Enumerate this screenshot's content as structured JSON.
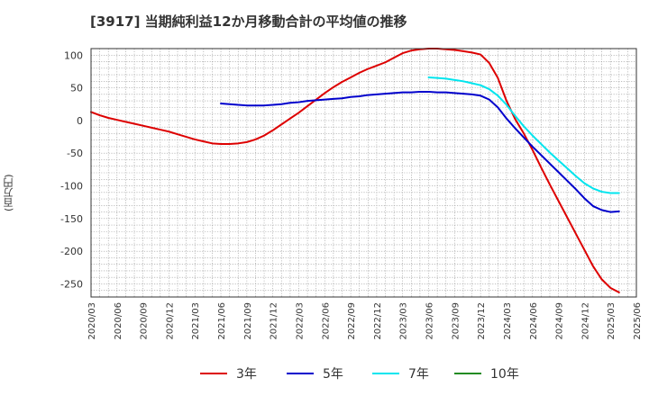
{
  "chart_title": "[3917]  当期純利益12か月移動合計の平均値の推移",
  "chart_data": {
    "type": "line",
    "title": "[3917]  当期純利益12か月移動合計の平均値の推移",
    "ylabel": "(百万円)",
    "xlabel": "",
    "ylim": [
      -270,
      110
    ],
    "yticks": [
      100,
      50,
      0,
      -50,
      -100,
      -150,
      -200,
      -250
    ],
    "xticks": [
      "2020/03",
      "2020/06",
      "2020/09",
      "2020/12",
      "2021/03",
      "2021/06",
      "2021/09",
      "2021/12",
      "2022/03",
      "2022/06",
      "2022/09",
      "2022/12",
      "2023/03",
      "2023/06",
      "2023/09",
      "2023/12",
      "2024/03",
      "2024/06",
      "2024/09",
      "2024/12",
      "2025/03",
      "2025/06"
    ],
    "grid": true,
    "legend_position": "bottom",
    "series": [
      {
        "name": "3年",
        "color": "#dd0000",
        "points": [
          [
            "2020/03",
            13
          ],
          [
            "2020/04",
            8
          ],
          [
            "2020/05",
            4
          ],
          [
            "2020/06",
            1
          ],
          [
            "2020/07",
            -2
          ],
          [
            "2020/08",
            -5
          ],
          [
            "2020/09",
            -8
          ],
          [
            "2020/10",
            -11
          ],
          [
            "2020/11",
            -14
          ],
          [
            "2020/12",
            -17
          ],
          [
            "2021/01",
            -21
          ],
          [
            "2021/02",
            -25
          ],
          [
            "2021/03",
            -29
          ],
          [
            "2021/04",
            -32
          ],
          [
            "2021/05",
            -35
          ],
          [
            "2021/06",
            -36
          ],
          [
            "2021/07",
            -36
          ],
          [
            "2021/08",
            -35
          ],
          [
            "2021/09",
            -33
          ],
          [
            "2021/10",
            -29
          ],
          [
            "2021/11",
            -23
          ],
          [
            "2021/12",
            -15
          ],
          [
            "2022/01",
            -6
          ],
          [
            "2022/02",
            3
          ],
          [
            "2022/03",
            12
          ],
          [
            "2022/04",
            22
          ],
          [
            "2022/05",
            32
          ],
          [
            "2022/06",
            42
          ],
          [
            "2022/07",
            51
          ],
          [
            "2022/08",
            59
          ],
          [
            "2022/09",
            66
          ],
          [
            "2022/10",
            73
          ],
          [
            "2022/11",
            79
          ],
          [
            "2022/12",
            84
          ],
          [
            "2023/01",
            89
          ],
          [
            "2023/02",
            96
          ],
          [
            "2023/03",
            103
          ],
          [
            "2023/04",
            107
          ],
          [
            "2023/05",
            109
          ],
          [
            "2023/06",
            110
          ],
          [
            "2023/07",
            110
          ],
          [
            "2023/08",
            109
          ],
          [
            "2023/09",
            108
          ],
          [
            "2023/10",
            106
          ],
          [
            "2023/11",
            104
          ],
          [
            "2023/12",
            101
          ],
          [
            "2024/01",
            88
          ],
          [
            "2024/02",
            65
          ],
          [
            "2024/03",
            30
          ],
          [
            "2024/04",
            2
          ],
          [
            "2024/05",
            -20
          ],
          [
            "2024/06",
            -45
          ],
          [
            "2024/07",
            -72
          ],
          [
            "2024/08",
            -98
          ],
          [
            "2024/09",
            -123
          ],
          [
            "2024/10",
            -148
          ],
          [
            "2024/11",
            -173
          ],
          [
            "2024/12",
            -198
          ],
          [
            "2025/01",
            -223
          ],
          [
            "2025/02",
            -243
          ],
          [
            "2025/03",
            -256
          ],
          [
            "2025/04",
            -263
          ]
        ]
      },
      {
        "name": "5年",
        "color": "#0000cc",
        "points": [
          [
            "2021/06",
            26
          ],
          [
            "2021/07",
            25
          ],
          [
            "2021/08",
            24
          ],
          [
            "2021/09",
            23
          ],
          [
            "2021/10",
            23
          ],
          [
            "2021/11",
            23
          ],
          [
            "2021/12",
            24
          ],
          [
            "2022/01",
            25
          ],
          [
            "2022/02",
            27
          ],
          [
            "2022/03",
            28
          ],
          [
            "2022/04",
            30
          ],
          [
            "2022/05",
            31
          ],
          [
            "2022/06",
            32
          ],
          [
            "2022/07",
            33
          ],
          [
            "2022/08",
            34
          ],
          [
            "2022/09",
            36
          ],
          [
            "2022/10",
            37
          ],
          [
            "2022/11",
            39
          ],
          [
            "2022/12",
            40
          ],
          [
            "2023/01",
            41
          ],
          [
            "2023/02",
            42
          ],
          [
            "2023/03",
            43
          ],
          [
            "2023/04",
            43
          ],
          [
            "2023/05",
            44
          ],
          [
            "2023/06",
            44
          ],
          [
            "2023/07",
            43
          ],
          [
            "2023/08",
            43
          ],
          [
            "2023/09",
            42
          ],
          [
            "2023/10",
            41
          ],
          [
            "2023/11",
            40
          ],
          [
            "2023/12",
            38
          ],
          [
            "2024/01",
            32
          ],
          [
            "2024/02",
            20
          ],
          [
            "2024/03",
            3
          ],
          [
            "2024/04",
            -12
          ],
          [
            "2024/05",
            -26
          ],
          [
            "2024/06",
            -40
          ],
          [
            "2024/07",
            -53
          ],
          [
            "2024/08",
            -66
          ],
          [
            "2024/09",
            -79
          ],
          [
            "2024/10",
            -92
          ],
          [
            "2024/11",
            -105
          ],
          [
            "2024/12",
            -119
          ],
          [
            "2025/01",
            -131
          ],
          [
            "2025/02",
            -137
          ],
          [
            "2025/03",
            -140
          ],
          [
            "2025/04",
            -139
          ]
        ]
      },
      {
        "name": "7年",
        "color": "#00e5ee",
        "points": [
          [
            "2023/06",
            66
          ],
          [
            "2023/07",
            65
          ],
          [
            "2023/08",
            64
          ],
          [
            "2023/09",
            62
          ],
          [
            "2023/10",
            60
          ],
          [
            "2023/11",
            57
          ],
          [
            "2023/12",
            54
          ],
          [
            "2024/01",
            48
          ],
          [
            "2024/02",
            38
          ],
          [
            "2024/03",
            24
          ],
          [
            "2024/04",
            7
          ],
          [
            "2024/05",
            -9
          ],
          [
            "2024/06",
            -23
          ],
          [
            "2024/07",
            -36
          ],
          [
            "2024/08",
            -49
          ],
          [
            "2024/09",
            -61
          ],
          [
            "2024/10",
            -73
          ],
          [
            "2024/11",
            -85
          ],
          [
            "2024/12",
            -96
          ],
          [
            "2025/01",
            -104
          ],
          [
            "2025/02",
            -109
          ],
          [
            "2025/03",
            -111
          ],
          [
            "2025/04",
            -111
          ]
        ]
      },
      {
        "name": "10年",
        "color": "#228b22",
        "points": []
      }
    ]
  }
}
